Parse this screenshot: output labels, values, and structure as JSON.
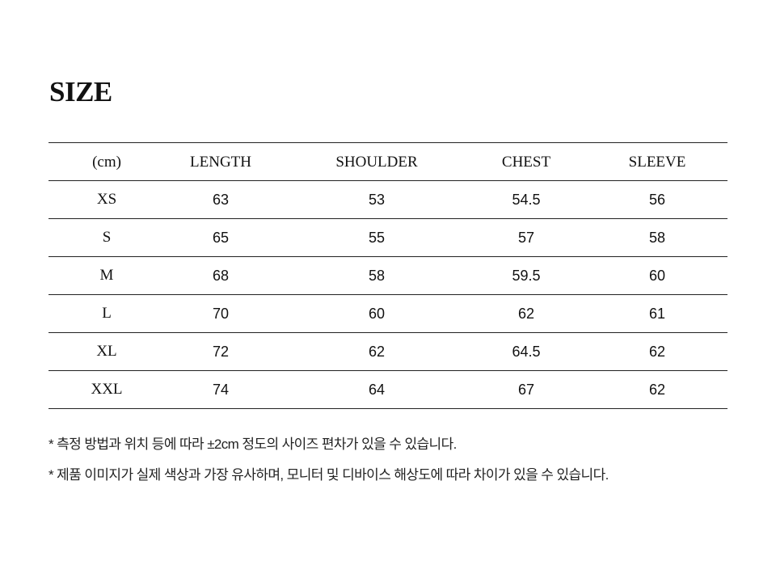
{
  "title": "SIZE",
  "table": {
    "headers": [
      "(cm)",
      "LENGTH",
      "SHOULDER",
      "CHEST",
      "SLEEVE"
    ],
    "rows": [
      [
        "XS",
        "63",
        "53",
        "54.5",
        "56"
      ],
      [
        "S",
        "65",
        "55",
        "57",
        "58"
      ],
      [
        "M",
        "68",
        "58",
        "59.5",
        "60"
      ],
      [
        "L",
        "70",
        "60",
        "62",
        "61"
      ],
      [
        "XL",
        "72",
        "62",
        "64.5",
        "62"
      ],
      [
        "XXL",
        "74",
        "64",
        "67",
        "62"
      ]
    ]
  },
  "notes": [
    "* 측정 방법과 위치 등에 따라 ±2cm 정도의 사이즈 편차가 있을 수 있습니다.",
    "* 제품 이미지가 실제 색상과 가장 유사하며, 모니터 및 디바이스 해상도에 따라 차이가 있을 수 있습니다."
  ]
}
